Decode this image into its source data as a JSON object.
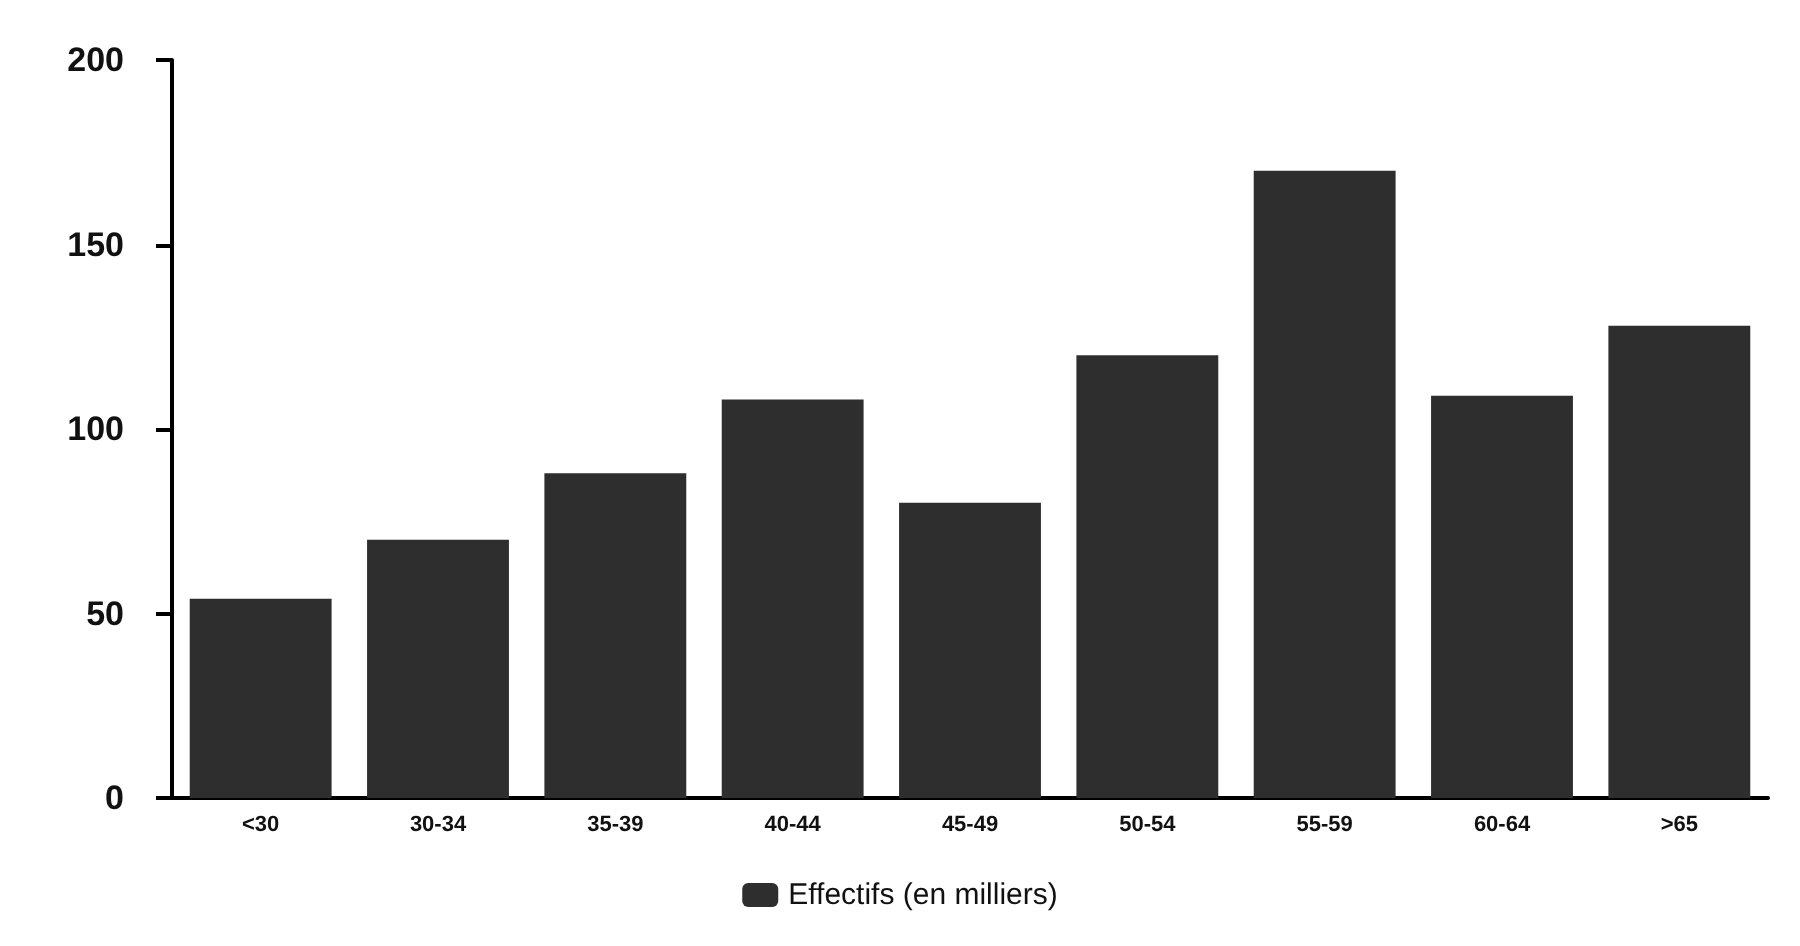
{
  "chart_data": {
    "type": "bar",
    "categories": [
      "<30",
      "30-34",
      "35-39",
      "40-44",
      "45-49",
      "50-54",
      "55-59",
      "60-64",
      ">65"
    ],
    "series": [
      {
        "name": "Effectifs (en milliers)",
        "color": "#2e2e2e",
        "values": [
          54,
          70,
          88,
          108,
          80,
          120,
          170,
          109,
          128
        ]
      }
    ],
    "ylim": [
      0,
      200
    ],
    "yticks": [
      0,
      50,
      100,
      150,
      200
    ],
    "grid": false,
    "legend": "bottom"
  }
}
